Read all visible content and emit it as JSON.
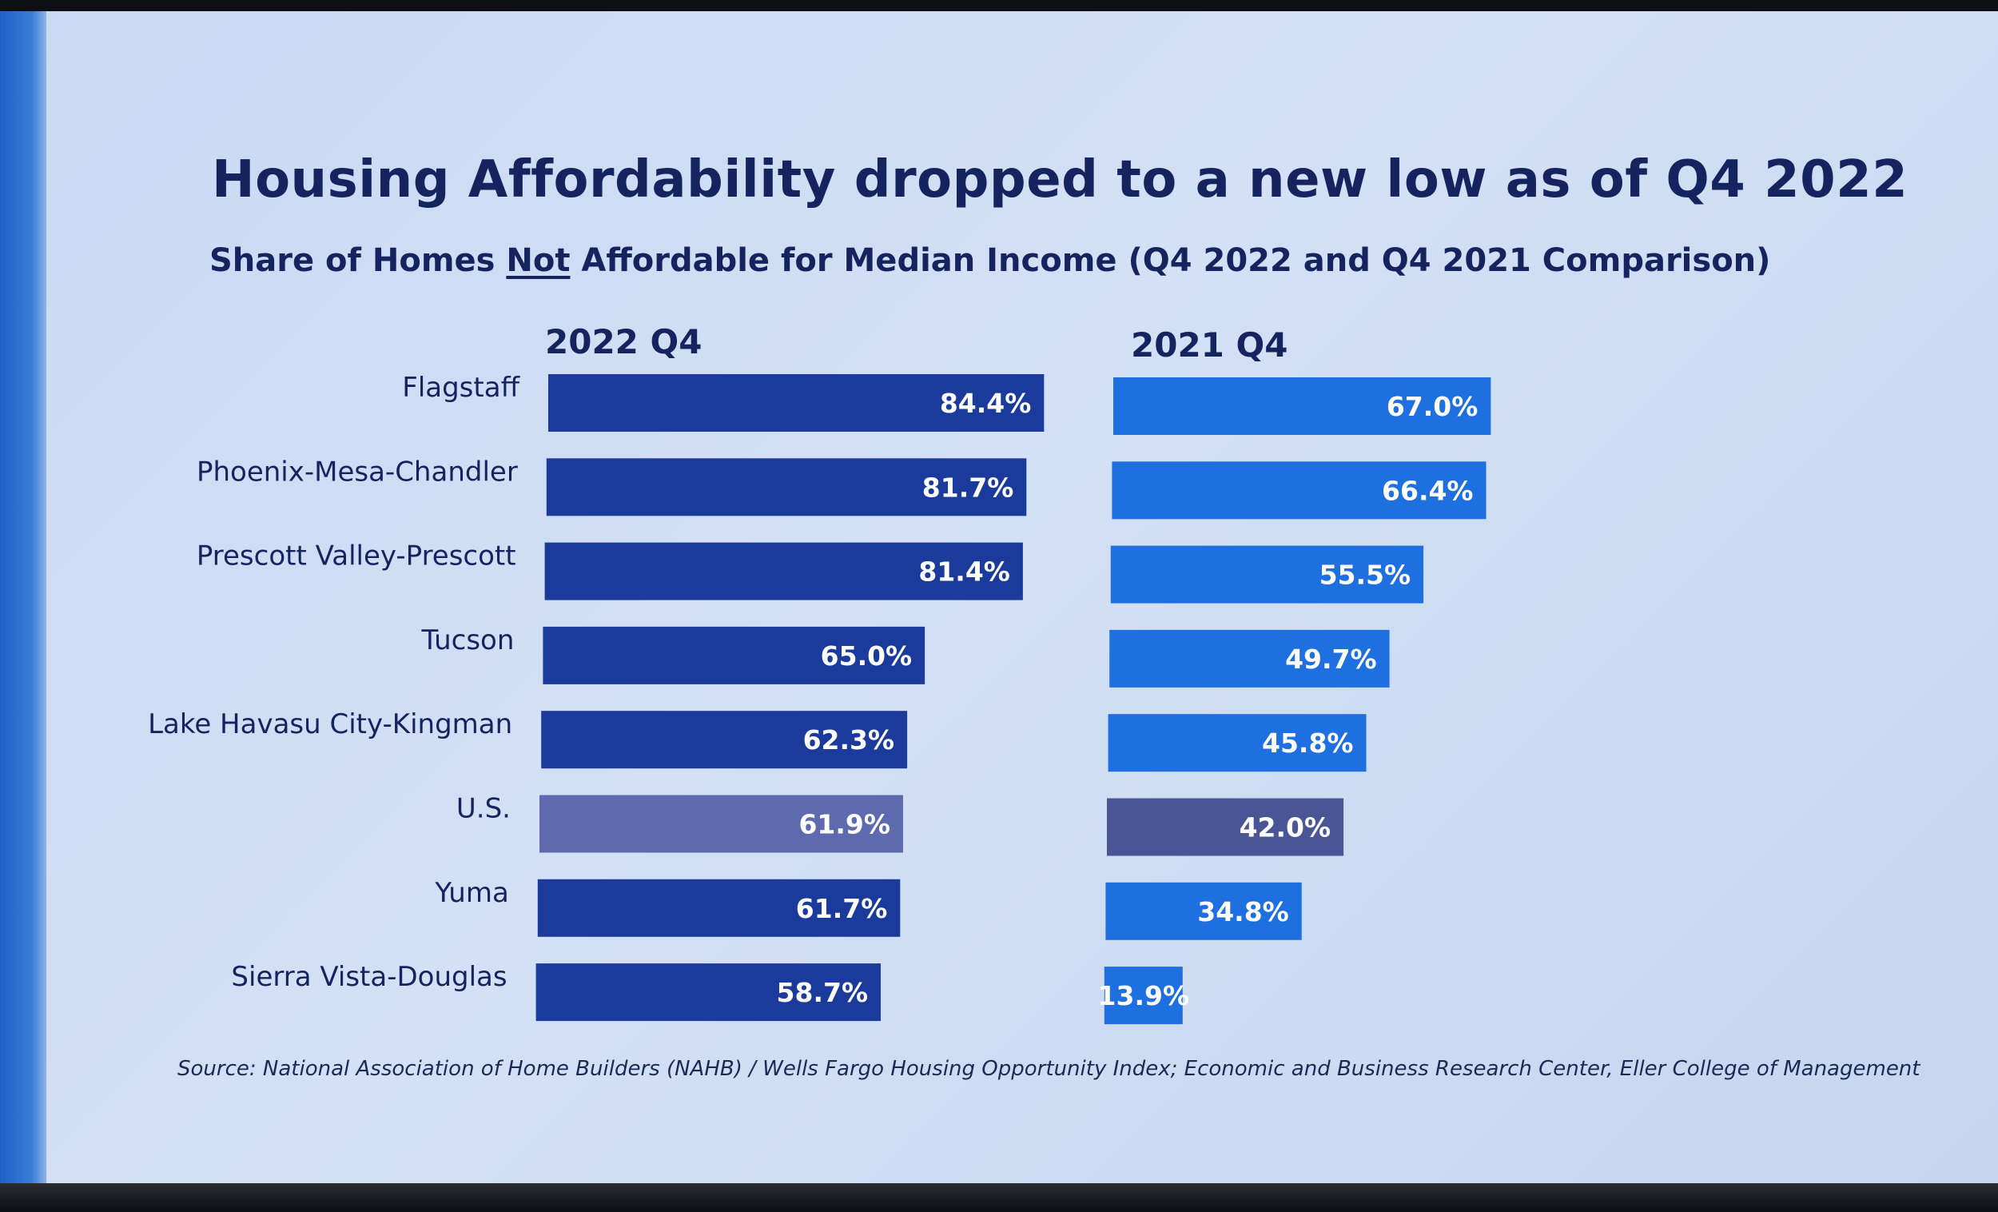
{
  "slide": {
    "title": "Housing Affordability dropped to a new low as of Q4 2022",
    "subtitle_before": "Share of Homes ",
    "subtitle_emph": "Not",
    "subtitle_after": " Affordable for Median Income (Q4 2022 and Q4 2021 Comparison)",
    "source": "Source: National Association of Home Builders (NAHB) / Wells Fargo Housing Opportunity Index; Economic and Business Research Center, Eller College of Management"
  },
  "chart_data": {
    "type": "bar",
    "orientation": "horizontal",
    "categories": [
      "Flagstaff",
      "Phoenix-Mesa-Chandler",
      "Prescott Valley-Prescott",
      "Tucson",
      "Lake Havasu City-Kingman",
      "U.S.",
      "Yuma",
      "Sierra Vista-Douglas"
    ],
    "series": [
      {
        "name": "2022 Q4",
        "values": [
          84.4,
          81.7,
          81.4,
          65.0,
          62.3,
          61.9,
          61.7,
          58.7
        ],
        "labels": [
          "84.4%",
          "81.7%",
          "81.4%",
          "65.0%",
          "62.3%",
          "61.9%",
          "61.7%",
          "58.7%"
        ],
        "color": "#1a3a9c"
      },
      {
        "name": "2021 Q4",
        "values": [
          67.0,
          66.4,
          55.5,
          49.7,
          45.8,
          42.0,
          34.8,
          13.9
        ],
        "labels": [
          "67.0%",
          "66.4%",
          "55.5%",
          "49.7%",
          "45.8%",
          "42.0%",
          "34.8%",
          "13.9%"
        ],
        "color": "#1e6fe0"
      }
    ],
    "highlight_category": "U.S.",
    "highlight_colors": {
      "2022 Q4": "#5d6aae",
      "2021 Q4": "#4a5596"
    },
    "xlim": [
      0,
      100
    ],
    "unit": "%"
  }
}
